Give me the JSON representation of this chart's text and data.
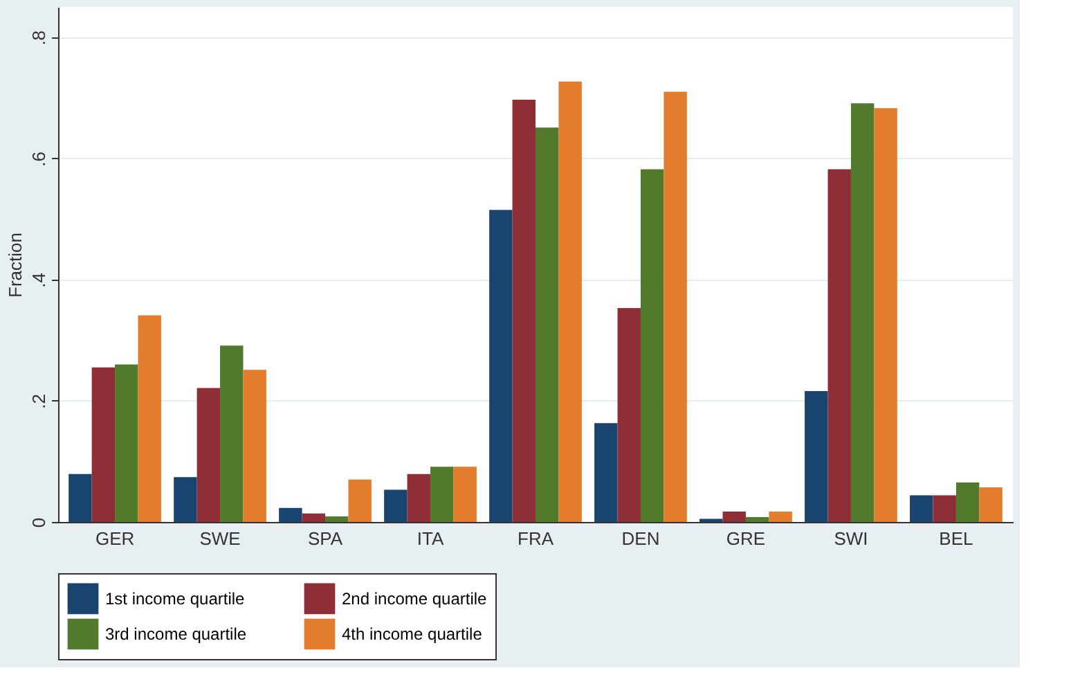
{
  "chart_data": {
    "type": "bar",
    "ylabel": "Fraction",
    "categories": [
      "GER",
      "SWE",
      "SPA",
      "ITA",
      "FRA",
      "DEN",
      "GRE",
      "SWI",
      "BEL"
    ],
    "series": [
      {
        "name": "1st income quartile",
        "color": "#1a4470",
        "values": [
          0.079,
          0.074,
          0.023,
          0.053,
          0.515,
          0.163,
          0.005,
          0.216,
          0.044
        ]
      },
      {
        "name": "2nd income quartile",
        "color": "#8e2f38",
        "values": [
          0.255,
          0.221,
          0.014,
          0.079,
          0.697,
          0.353,
          0.017,
          0.582,
          0.044
        ]
      },
      {
        "name": "3rd income quartile",
        "color": "#527a2c",
        "values": [
          0.26,
          0.291,
          0.009,
          0.091,
          0.651,
          0.582,
          0.008,
          0.691,
          0.065
        ]
      },
      {
        "name": "4th income quartile",
        "color": "#e37c2d",
        "values": [
          0.341,
          0.251,
          0.07,
          0.091,
          0.727,
          0.71,
          0.017,
          0.683,
          0.057
        ]
      }
    ],
    "ylim": [
      0,
      0.85
    ],
    "yticks": [
      0,
      {
        "value": 0.2,
        "label": ".2"
      },
      {
        "value": 0.4,
        "label": ".4"
      },
      {
        "value": 0.6,
        "label": ".6"
      },
      {
        "value": 0.8,
        "label": ".8"
      }
    ],
    "grid": "y",
    "legend": "bottom"
  }
}
